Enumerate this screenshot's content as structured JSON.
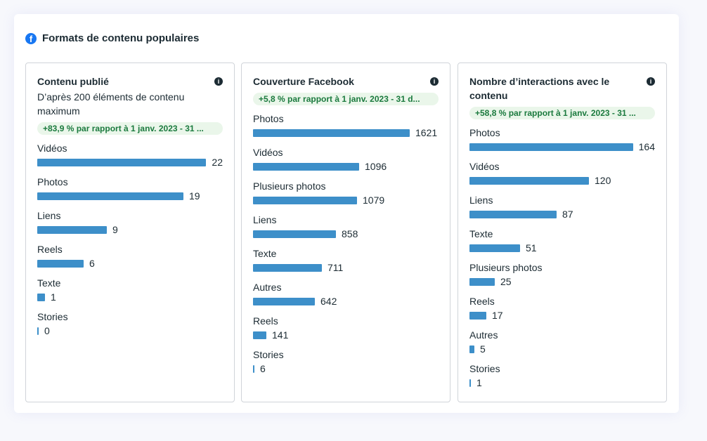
{
  "header": {
    "title": "Formats de contenu populaires",
    "icon": "facebook-icon"
  },
  "colors": {
    "bar": "#3d8fc9",
    "badge_text": "#1b7a3e",
    "badge_bg": "#eaf6ea"
  },
  "panels": [
    {
      "title": "Contenu publié",
      "subtitle": "D’après 200 éléments de contenu maximum",
      "badge": "+83,9 % par rapport à 1 janv. 2023 - 31 ...",
      "items": [
        {
          "label": "Vidéos",
          "value": 22
        },
        {
          "label": "Photos",
          "value": 19
        },
        {
          "label": "Liens",
          "value": 9
        },
        {
          "label": "Reels",
          "value": 6
        },
        {
          "label": "Texte",
          "value": 1
        },
        {
          "label": "Stories",
          "value": 0
        }
      ]
    },
    {
      "title": "Couverture Facebook",
      "badge": "+5,8 % par rapport à 1 janv. 2023 - 31 d...",
      "items": [
        {
          "label": "Photos",
          "value": 1621
        },
        {
          "label": "Vidéos",
          "value": 1096
        },
        {
          "label": "Plusieurs photos",
          "value": 1079
        },
        {
          "label": "Liens",
          "value": 858
        },
        {
          "label": "Texte",
          "value": 711
        },
        {
          "label": "Autres",
          "value": 642
        },
        {
          "label": "Reels",
          "value": 141
        },
        {
          "label": "Stories",
          "value": 6
        }
      ]
    },
    {
      "title": "Nombre d’interactions avec le contenu",
      "badge": "+58,8 % par rapport à 1 janv. 2023 - 31 ...",
      "items": [
        {
          "label": "Photos",
          "value": 164
        },
        {
          "label": "Vidéos",
          "value": 120
        },
        {
          "label": "Liens",
          "value": 87
        },
        {
          "label": "Texte",
          "value": 51
        },
        {
          "label": "Plusieurs photos",
          "value": 25
        },
        {
          "label": "Reels",
          "value": 17
        },
        {
          "label": "Autres",
          "value": 5
        },
        {
          "label": "Stories",
          "value": 1
        }
      ]
    }
  ]
}
